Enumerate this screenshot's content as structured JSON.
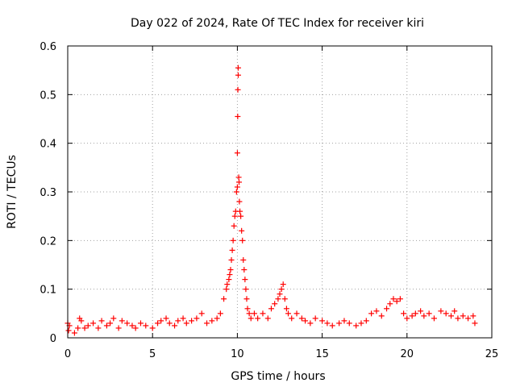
{
  "chart_data": {
    "type": "scatter",
    "title": "Day 022 of 2024, Rate Of TEC Index for receiver kiri",
    "xlabel": "GPS time / hours",
    "ylabel": "ROTI / TECUs",
    "xlim": [
      0,
      25
    ],
    "ylim": [
      0,
      0.6
    ],
    "xticks": [
      0,
      5,
      10,
      15,
      20,
      25
    ],
    "xtick_labels": [
      "0",
      "5",
      "10",
      "15",
      "20",
      "25"
    ],
    "yticks": [
      0,
      0.1,
      0.2,
      0.3,
      0.4,
      0.5,
      0.6
    ],
    "ytick_labels": [
      "0",
      "0.1",
      "0.2",
      "0.3",
      "0.4",
      "0.5",
      "0.6"
    ],
    "grid": true,
    "marker": "+",
    "marker_color": "#ff0000",
    "series": [
      {
        "name": "ROTI",
        "x": [
          0.0,
          0.05,
          0.1,
          0.4,
          0.6,
          0.7,
          0.8,
          1.0,
          1.2,
          1.5,
          1.8,
          2.0,
          2.3,
          2.5,
          2.7,
          3.0,
          3.2,
          3.5,
          3.8,
          4.0,
          4.3,
          4.6,
          5.0,
          5.3,
          5.5,
          5.8,
          6.0,
          6.3,
          6.5,
          6.8,
          7.0,
          7.3,
          7.6,
          7.9,
          8.2,
          8.5,
          8.8,
          9.0,
          9.2,
          9.35,
          9.4,
          9.5,
          9.55,
          9.6,
          9.65,
          9.7,
          9.75,
          9.8,
          9.85,
          9.9,
          9.95,
          10.0,
          10.0,
          10.02,
          10.03,
          10.05,
          10.05,
          10.08,
          10.1,
          10.12,
          10.15,
          10.2,
          10.25,
          10.3,
          10.35,
          10.4,
          10.45,
          10.5,
          10.55,
          10.6,
          10.7,
          10.8,
          11.0,
          11.2,
          11.5,
          11.8,
          12.0,
          12.2,
          12.4,
          12.5,
          12.6,
          12.7,
          12.8,
          12.9,
          13.0,
          13.2,
          13.5,
          13.8,
          14.0,
          14.3,
          14.6,
          15.0,
          15.3,
          15.6,
          16.0,
          16.3,
          16.6,
          17.0,
          17.3,
          17.6,
          17.9,
          18.2,
          18.5,
          18.8,
          19.0,
          19.2,
          19.4,
          19.6,
          19.8,
          20.0,
          20.3,
          20.5,
          20.8,
          21.0,
          21.3,
          21.6,
          22.0,
          22.3,
          22.6,
          22.8,
          23.0,
          23.3,
          23.6,
          23.9,
          24.0
        ],
        "y": [
          0.03,
          0.015,
          0.025,
          0.01,
          0.02,
          0.04,
          0.035,
          0.02,
          0.025,
          0.03,
          0.02,
          0.035,
          0.025,
          0.03,
          0.04,
          0.02,
          0.035,
          0.03,
          0.025,
          0.02,
          0.03,
          0.025,
          0.02,
          0.03,
          0.035,
          0.04,
          0.03,
          0.025,
          0.035,
          0.04,
          0.03,
          0.035,
          0.04,
          0.05,
          0.03,
          0.035,
          0.04,
          0.05,
          0.08,
          0.1,
          0.11,
          0.12,
          0.13,
          0.14,
          0.16,
          0.18,
          0.2,
          0.23,
          0.25,
          0.26,
          0.3,
          0.31,
          0.38,
          0.455,
          0.51,
          0.54,
          0.555,
          0.33,
          0.32,
          0.28,
          0.26,
          0.25,
          0.22,
          0.2,
          0.16,
          0.14,
          0.12,
          0.1,
          0.08,
          0.06,
          0.05,
          0.04,
          0.05,
          0.04,
          0.05,
          0.04,
          0.06,
          0.07,
          0.08,
          0.09,
          0.1,
          0.11,
          0.08,
          0.06,
          0.05,
          0.04,
          0.05,
          0.04,
          0.035,
          0.03,
          0.04,
          0.035,
          0.03,
          0.025,
          0.03,
          0.035,
          0.03,
          0.025,
          0.03,
          0.035,
          0.05,
          0.055,
          0.045,
          0.06,
          0.07,
          0.08,
          0.075,
          0.08,
          0.05,
          0.04,
          0.045,
          0.05,
          0.055,
          0.045,
          0.05,
          0.04,
          0.055,
          0.05,
          0.045,
          0.055,
          0.04,
          0.045,
          0.04,
          0.045,
          0.03
        ]
      }
    ]
  }
}
